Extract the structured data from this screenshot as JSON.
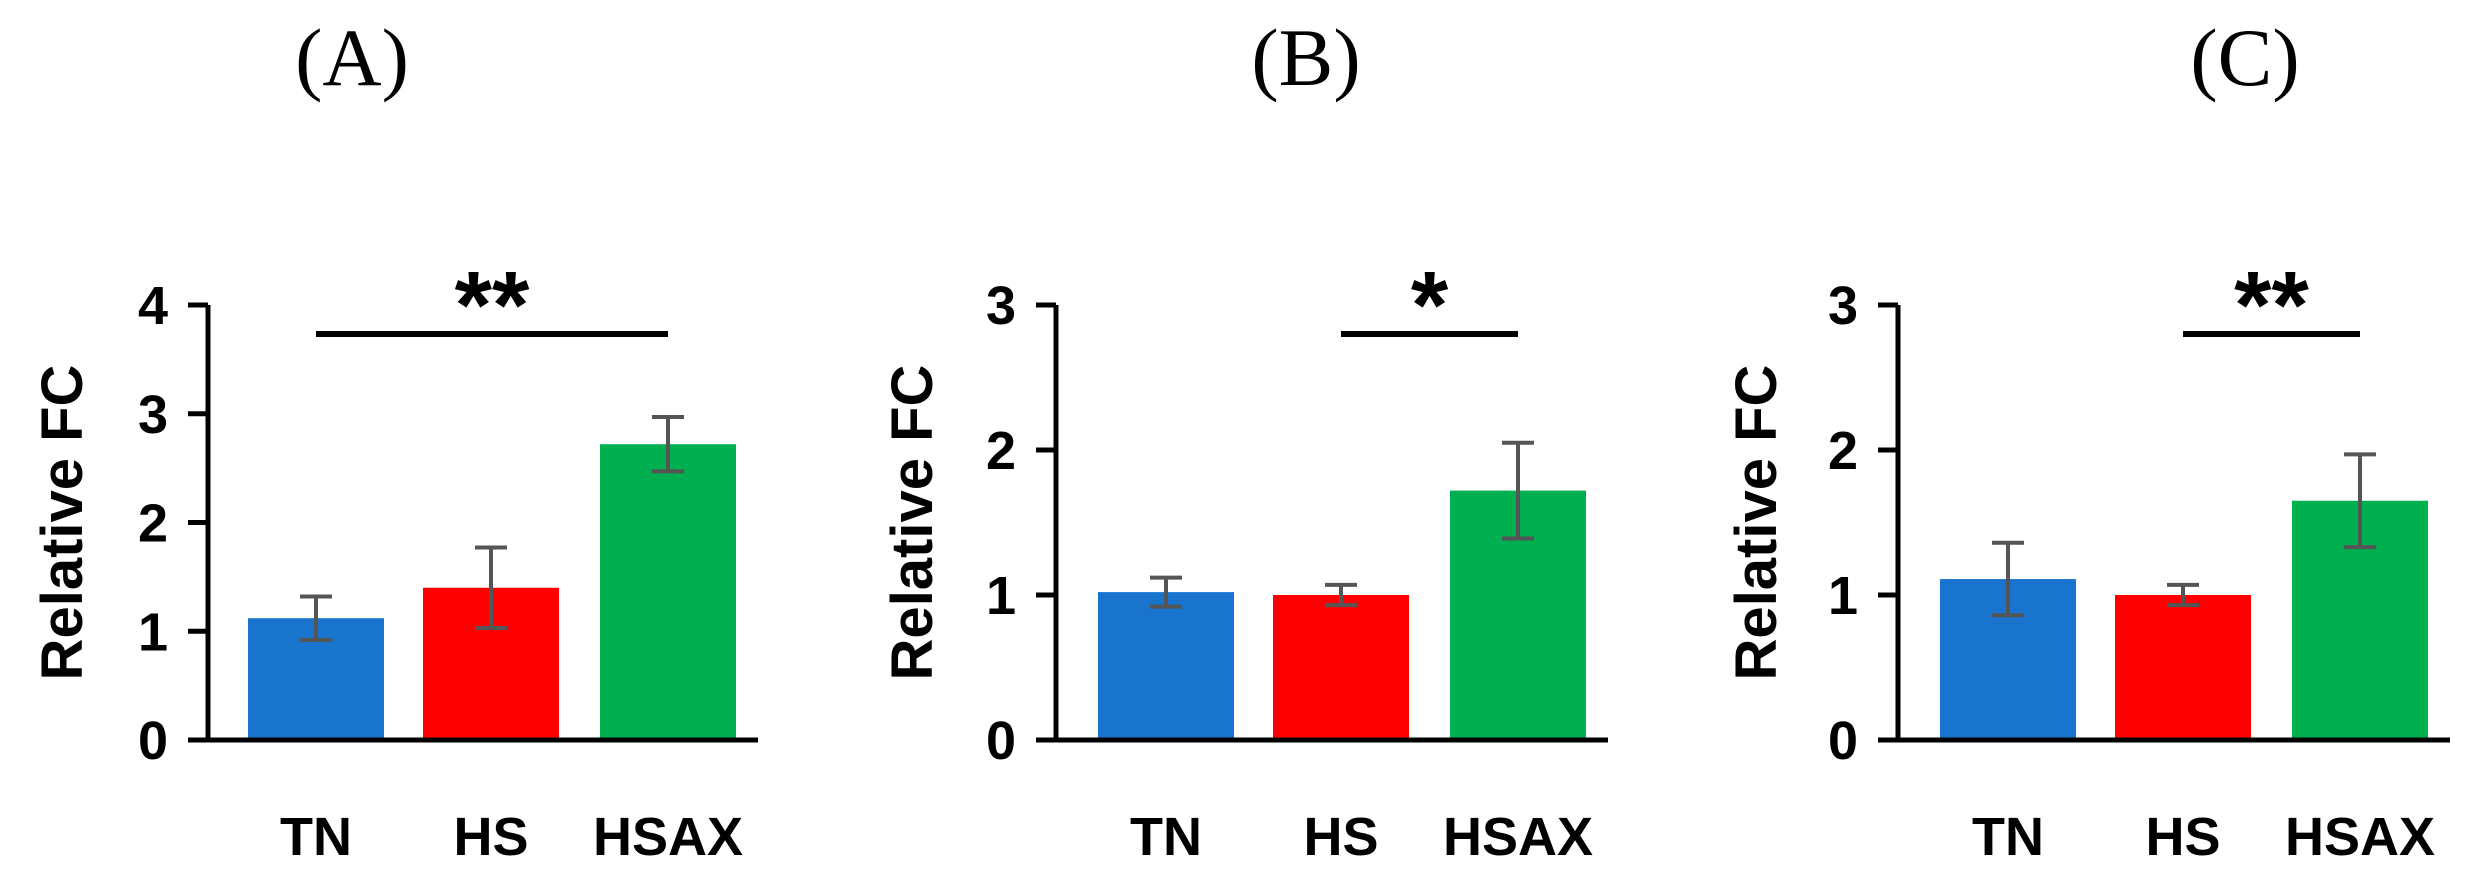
{
  "chart_data": [
    {
      "type": "bar",
      "panel_label": "(A)",
      "ylabel": "Relative FC",
      "ylim": [
        0,
        4
      ],
      "yticks": [
        "0",
        "1",
        "2",
        "3",
        "4"
      ],
      "categories": [
        "TN",
        "HS",
        "HSAX"
      ],
      "values": [
        1.12,
        1.4,
        2.72
      ],
      "errors": [
        0.2,
        0.37,
        0.25
      ],
      "colors": [
        "#1874CD",
        "#FF0000",
        "#00B050"
      ],
      "significance": {
        "from": "TN",
        "to": "HSAX",
        "label": "**"
      }
    },
    {
      "type": "bar",
      "panel_label": "(B)",
      "ylabel": "Relative FC",
      "ylim": [
        0,
        3
      ],
      "yticks": [
        "0",
        "1",
        "2",
        "3"
      ],
      "categories": [
        "TN",
        "HS",
        "HSAX"
      ],
      "values": [
        1.02,
        1.0,
        1.72
      ],
      "errors": [
        0.1,
        0.07,
        0.33
      ],
      "colors": [
        "#1874CD",
        "#FF0000",
        "#00B050"
      ],
      "significance": {
        "from": "HS",
        "to": "HSAX",
        "label": "*"
      }
    },
    {
      "type": "bar",
      "panel_label": "(C)",
      "ylabel": "Relative FC",
      "ylim": [
        0,
        3
      ],
      "yticks": [
        "0",
        "1",
        "2",
        "3"
      ],
      "categories": [
        "TN",
        "HS",
        "HSAX"
      ],
      "values": [
        1.11,
        1.0,
        1.65
      ],
      "errors": [
        0.25,
        0.07,
        0.32
      ],
      "colors": [
        "#1874CD",
        "#FF0000",
        "#00B050"
      ],
      "significance": {
        "from": "HS",
        "to": "HSAX",
        "label": "**"
      }
    }
  ]
}
